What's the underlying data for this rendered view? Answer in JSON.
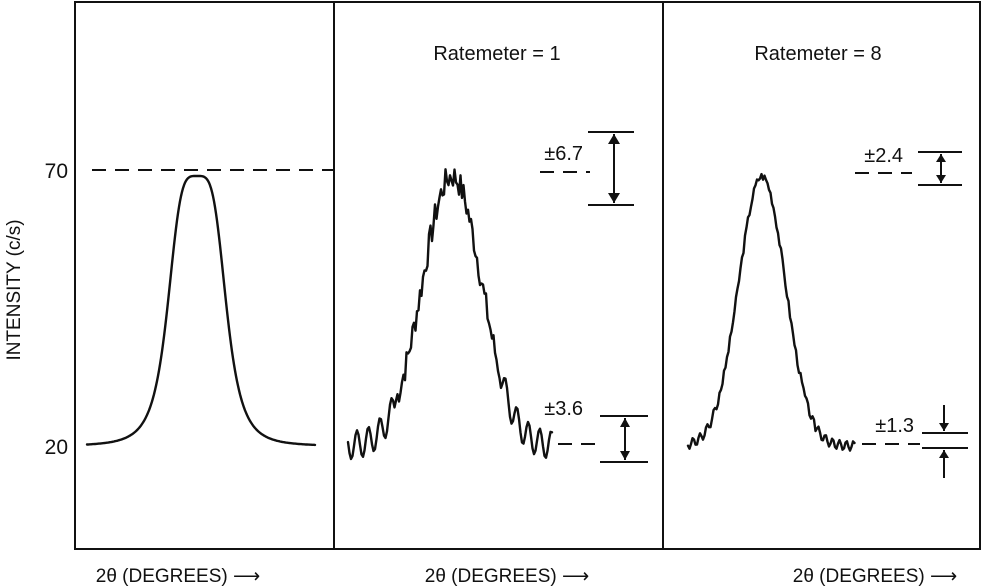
{
  "chart_data": [
    {
      "type": "line",
      "panel": "left",
      "title": "",
      "xlabel": "2θ (DEGREES) ⟶",
      "ylabel": "INTENSITY (c/s)",
      "y_ticks": [
        "70",
        "20"
      ],
      "ylim": [
        0,
        90
      ],
      "peak_intensity": 70,
      "background_intensity": 20,
      "reference_line": 70,
      "trace": "smooth"
    },
    {
      "type": "line",
      "panel": "middle",
      "title": "Ratemeter = 1",
      "xlabel": "2θ (DEGREES) ⟶",
      "ylabel": "",
      "ylim": [
        0,
        90
      ],
      "peak_intensity": 70,
      "background_intensity": 20,
      "trace": "noisy",
      "error_bars": [
        {
          "label": "±6.7",
          "center": 70,
          "half_width": 6.7
        },
        {
          "label": "±3.6",
          "center": 20,
          "half_width": 3.6
        }
      ]
    },
    {
      "type": "line",
      "panel": "right",
      "title": "Ratemeter = 8",
      "xlabel": "2θ (DEGREES) ⟶",
      "ylabel": "",
      "ylim": [
        0,
        90
      ],
      "peak_intensity": 70,
      "background_intensity": 20,
      "trace": "slightly-noisy",
      "error_bars": [
        {
          "label": "±2.4",
          "center": 70,
          "half_width": 2.4
        },
        {
          "label": "±1.3",
          "center": 20,
          "half_width": 1.3
        }
      ]
    }
  ]
}
